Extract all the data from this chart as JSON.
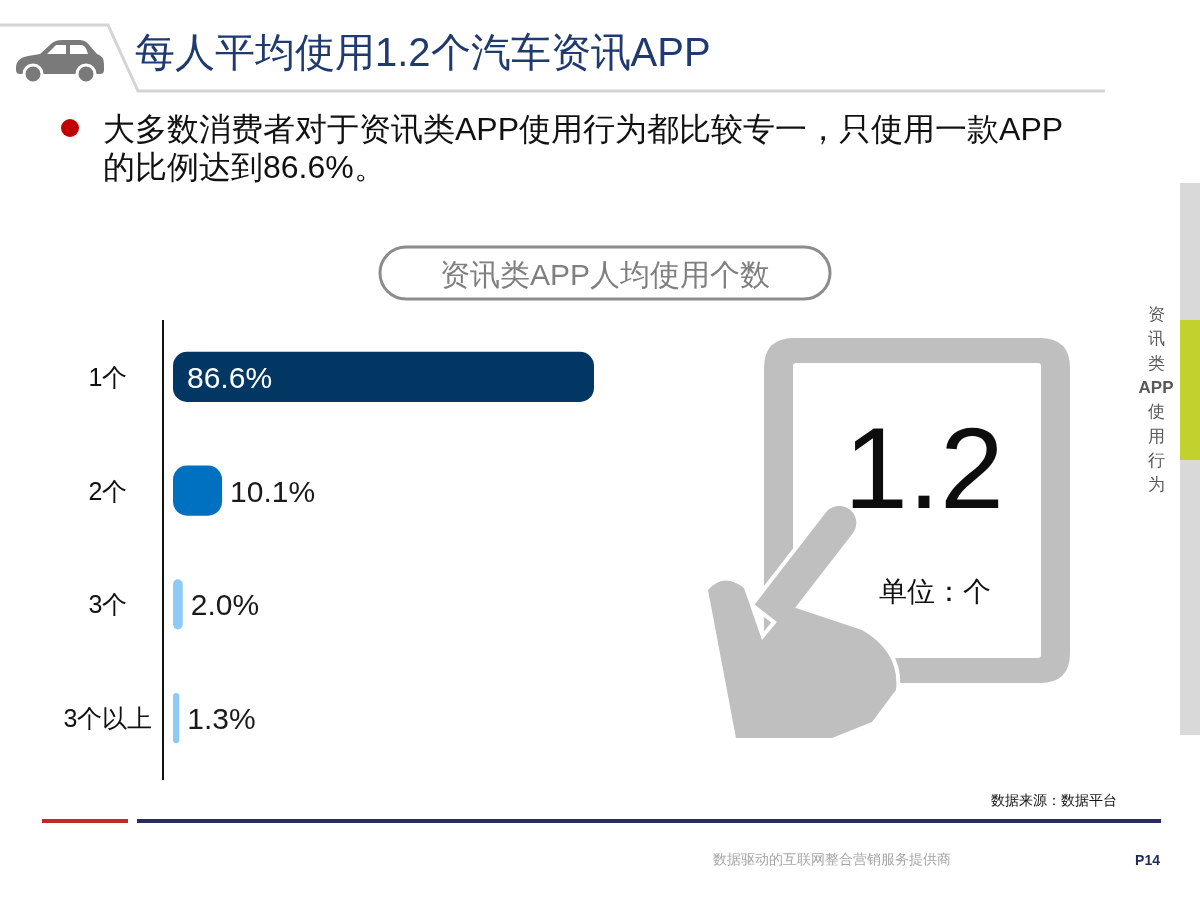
{
  "chart_data": {
    "type": "bar",
    "orientation": "horizontal",
    "title": "每人平均使用1.2个汽车资讯APP",
    "subtitle": "大多数消费者对于资讯类APP使用行为都比较专一，只使用一款APP的比例达到86.6%。",
    "categories": [
      "1个",
      "2个",
      "3个",
      "3个以上"
    ],
    "values": [
      86.6,
      10.1,
      2.0,
      1.3
    ],
    "colors": [
      "#023764",
      "#0070c0",
      "#8dcaf6",
      "#8dcaf6"
    ],
    "value_labels": [
      "86.6%",
      "10.1%",
      "2.0%",
      "1.3%"
    ],
    "annotations": [
      "资讯类APP人均使用个数",
      "1.2",
      "单位：个",
      "资讯类APP使用行为",
      "数据来源：数据平台",
      "数据驱动的互联网整合营销服务提供商",
      "P14"
    ]
  }
}
